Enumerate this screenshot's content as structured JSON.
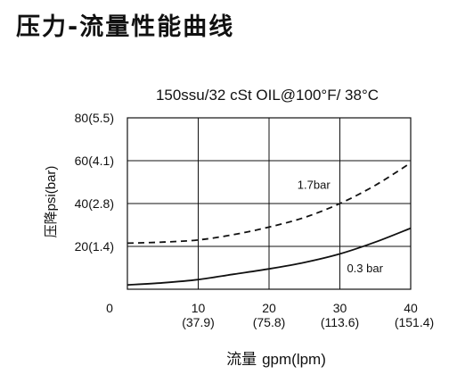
{
  "page": {
    "title": "压力-流量性能曲线"
  },
  "chart_data": {
    "type": "line",
    "title": "150ssu/32 cSt OIL@100°F/ 38°C",
    "xlabel_cn": "流量",
    "xlabel": "gpm(lpm)",
    "ylabel": "压降psi(bar)",
    "xlim": [
      0,
      40
    ],
    "ylim": [
      0,
      80
    ],
    "grid": true,
    "x_ticks": [
      {
        "value": 0,
        "label": "0",
        "sublabel": ""
      },
      {
        "value": 10,
        "label": "10",
        "sublabel": "(37.9)"
      },
      {
        "value": 20,
        "label": "20",
        "sublabel": "(75.8)"
      },
      {
        "value": 30,
        "label": "30",
        "sublabel": "(113.6)"
      },
      {
        "value": 40,
        "label": "40",
        "sublabel": "(151.4)"
      }
    ],
    "y_ticks": [
      {
        "value": 20,
        "label": "20(1.4)"
      },
      {
        "value": 40,
        "label": "40(2.8)"
      },
      {
        "value": 60,
        "label": "60(4.1)"
      },
      {
        "value": 80,
        "label": "80(5.5)"
      }
    ],
    "series": [
      {
        "name": "1.7bar",
        "dash": true,
        "label_at": [
          24,
          49
        ],
        "x": [
          0,
          5,
          10,
          15,
          20,
          25,
          30,
          35,
          40
        ],
        "y": [
          21.5,
          22,
          23,
          25.5,
          29,
          33.5,
          40,
          48.5,
          59
        ]
      },
      {
        "name": "0.3 bar",
        "dash": false,
        "label_at": [
          31,
          10
        ],
        "x": [
          0,
          5,
          10,
          15,
          20,
          25,
          30,
          35,
          40
        ],
        "y": [
          2,
          3,
          4.5,
          7,
          9.5,
          12.5,
          16.5,
          22,
          28.5
        ]
      }
    ]
  }
}
